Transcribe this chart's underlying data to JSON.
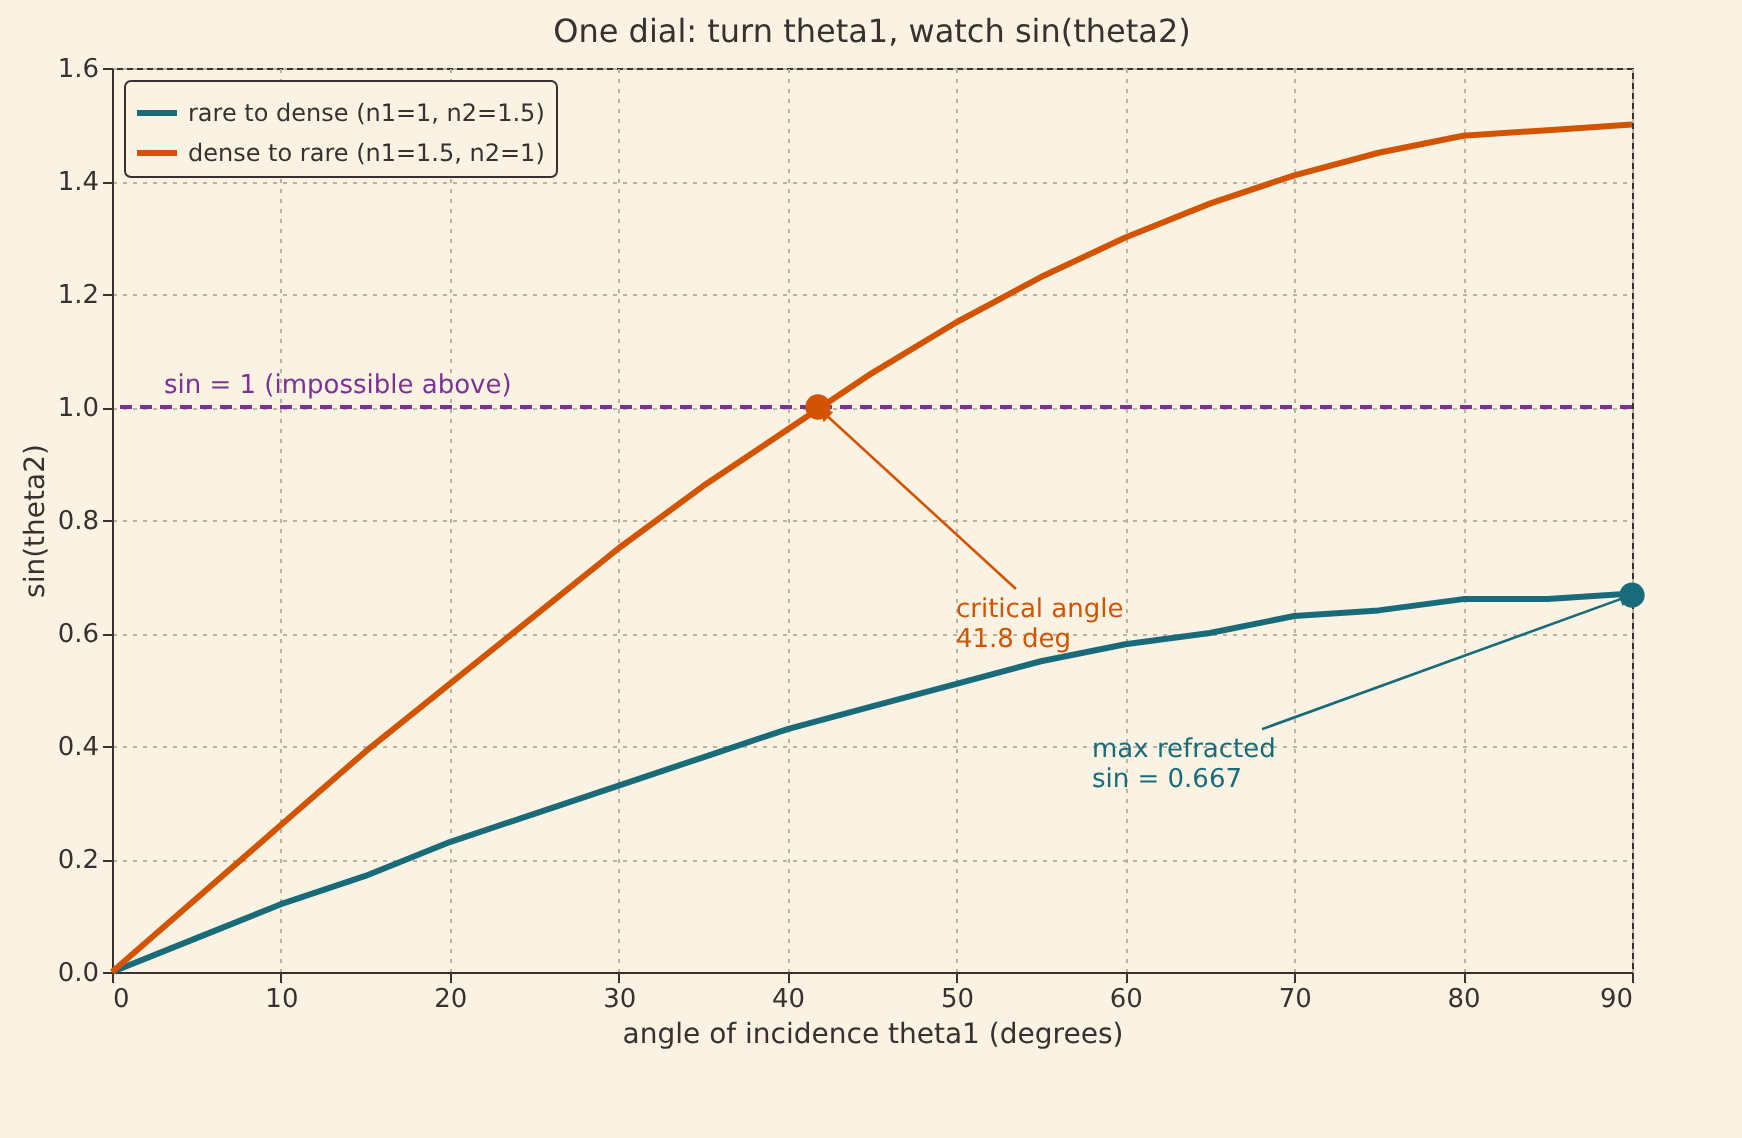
{
  "chart_data": {
    "type": "line",
    "title": "One dial: turn theta1, watch sin(theta2)",
    "xlabel": "angle of incidence  theta1  (degrees)",
    "ylabel": "sin(theta2)",
    "x": [
      0,
      5,
      10,
      15,
      20,
      25,
      30,
      35,
      40,
      45,
      50,
      55,
      60,
      65,
      70,
      75,
      80,
      85,
      90
    ],
    "series": [
      {
        "name": "rare to dense (n1=1, n2=1.5)",
        "color": "#1a6b7a",
        "values": [
          0,
          0.06,
          0.12,
          0.17,
          0.23,
          0.28,
          0.33,
          0.38,
          0.43,
          0.47,
          0.51,
          0.55,
          0.58,
          0.6,
          0.63,
          0.64,
          0.66,
          0.66,
          0.67
        ]
      },
      {
        "name": "dense to rare (n1=1.5, n2=1)",
        "color": "#d35400",
        "values": [
          0,
          0.13,
          0.26,
          0.39,
          0.51,
          0.63,
          0.75,
          0.86,
          0.96,
          1.06,
          1.15,
          1.23,
          1.3,
          1.36,
          1.41,
          1.45,
          1.48,
          1.49,
          1.5
        ]
      }
    ],
    "xlim": [
      0,
      90
    ],
    "xticks": [
      0,
      10,
      20,
      30,
      40,
      50,
      60,
      70,
      80,
      90
    ],
    "ylim": [
      0,
      1.6
    ],
    "yticks": [
      {
        "value": 0,
        "label": "0.0"
      },
      0.2,
      0.4,
      0.6,
      0.8,
      {
        "value": 1,
        "label": "1.0"
      },
      1.2,
      1.4,
      1.6
    ],
    "ref_lines": [
      {
        "axis": "y",
        "value": 1,
        "label": "sin = 1  (impossible above)",
        "color": "#7b3294",
        "line_style": "dashed"
      }
    ],
    "annotations": [
      {
        "text": "critical angle\n41.8 deg",
        "x": 41.8,
        "y": 1
      },
      {
        "text": "max refracted\nsin = 0.667",
        "x": 90,
        "y": 0.667
      }
    ],
    "grid": true,
    "legend": "top left",
    "line_style": "solid"
  }
}
